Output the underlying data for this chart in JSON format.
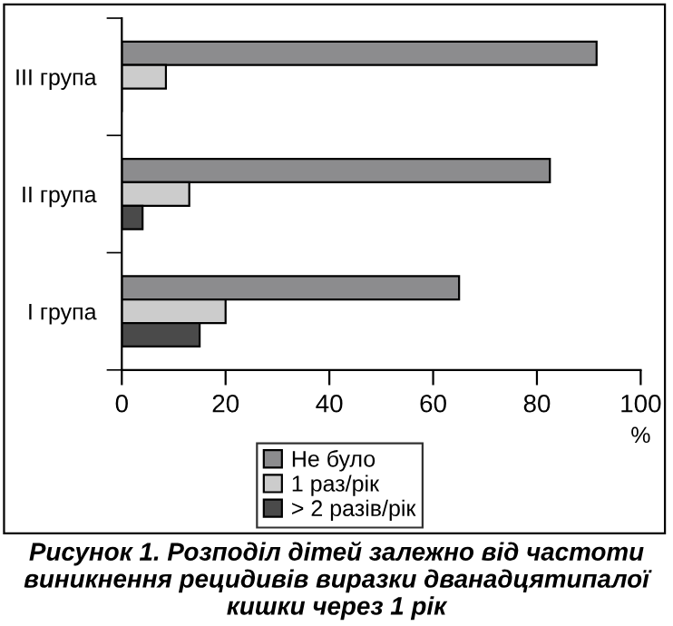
{
  "chart_data": {
    "type": "bar",
    "orientation": "horizontal",
    "title": "Рисунок 1. Розподіл дітей залежно від частоти виникнення рецидивів виразки дванадцятипалої кишки через 1 рік",
    "xlabel": "%",
    "categories": [
      "III група",
      "II група",
      "I група"
    ],
    "series": [
      {
        "name": "Не було",
        "color": "#8c8c8e",
        "values": [
          91.5,
          82.5,
          65
        ]
      },
      {
        "name": "1 раз/рік",
        "color": "#cccccc",
        "values": [
          8.5,
          13,
          20
        ]
      },
      {
        "name": "> 2 разів/рік",
        "color": "#4a4a4a",
        "values": [
          0,
          4,
          15
        ]
      }
    ],
    "xlim": [
      0,
      100
    ],
    "xticks": [
      0,
      20,
      40,
      60,
      80,
      100
    ],
    "grid": false,
    "legend": "bottom"
  }
}
